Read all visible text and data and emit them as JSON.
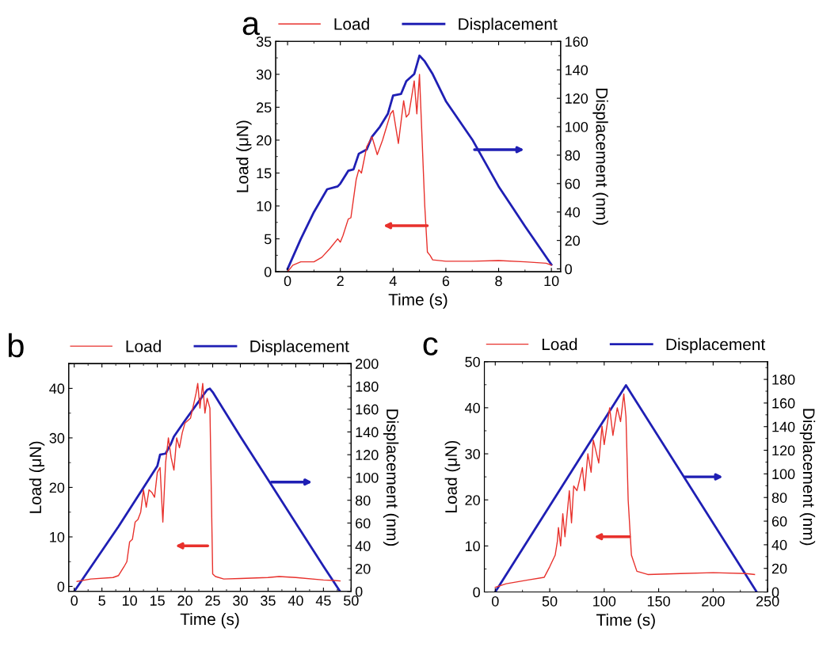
{
  "chart_data": [
    {
      "type": "line",
      "title": "a",
      "xlabel": "Time (s)",
      "ylabel": "Load (μN)",
      "y2label": "Displacement (nm)",
      "legend": "top",
      "xlim": [
        -0.45,
        10.35
      ],
      "xticks": [
        0,
        2,
        4,
        6,
        8,
        10
      ],
      "ylim": [
        0,
        35
      ],
      "yticks": [
        0,
        5,
        10,
        15,
        20,
        25,
        30,
        35
      ],
      "y2lim": [
        -2,
        160
      ],
      "y2ticks": [
        0,
        20,
        40,
        60,
        80,
        100,
        120,
        140,
        160
      ],
      "series": [
        {
          "name": "Load",
          "color": "#e8312c",
          "x": [
            0,
            0.2,
            0.5,
            1,
            1.3,
            1.6,
            1.9,
            2,
            2.1,
            2.3,
            2.4,
            2.6,
            2.7,
            2.8,
            3,
            3.2,
            3.4,
            3.6,
            3.9,
            4.0,
            4.2,
            4.4,
            4.5,
            4.6,
            4.8,
            4.9,
            5.0,
            5.05,
            5.2,
            5.3,
            5.4,
            5.5,
            6,
            7,
            8,
            9,
            9.8,
            10
          ],
          "values": [
            0,
            1,
            1.5,
            1.5,
            2.2,
            3.5,
            5,
            4.5,
            5.5,
            8,
            8.2,
            14,
            15.5,
            15,
            19,
            20.5,
            17.8,
            20,
            24,
            24.5,
            19.5,
            26,
            23.5,
            24,
            29,
            24,
            30,
            25,
            10,
            3,
            2.5,
            1.8,
            1.6,
            1.6,
            1.7,
            1.5,
            1.3,
            1.0
          ]
        },
        {
          "name": "Displacement",
          "color": "#1f1fb4",
          "axis": "y2",
          "x": [
            0,
            0.5,
            1,
            1.5,
            1.9,
            2,
            2.3,
            2.5,
            2.7,
            3,
            3.2,
            3.5,
            3.8,
            4,
            4.3,
            4.5,
            4.8,
            5,
            5.2,
            5.5,
            6,
            7,
            8,
            9,
            10
          ],
          "values": [
            0,
            21,
            40,
            56,
            58,
            60,
            69,
            70,
            81,
            84,
            93,
            100,
            109,
            122,
            123,
            132,
            137,
            150,
            146,
            137,
            118,
            91,
            58,
            30,
            3
          ]
        }
      ]
    },
    {
      "type": "line",
      "title": "b",
      "xlabel": "Time (s)",
      "ylabel": "Load (μN)",
      "y2label": "Displacement (nm)",
      "legend": "top",
      "xlim": [
        -1,
        50
      ],
      "xticks": [
        0,
        5,
        10,
        15,
        20,
        25,
        30,
        35,
        40,
        45,
        50
      ],
      "ylim": [
        -1,
        45
      ],
      "yticks": [
        0,
        10,
        20,
        30,
        40
      ],
      "y2lim": [
        0,
        200
      ],
      "y2ticks": [
        0,
        20,
        40,
        60,
        80,
        100,
        120,
        140,
        160,
        180,
        200
      ],
      "series": [
        {
          "name": "Load",
          "color": "#e8312c",
          "x": [
            0.5,
            3,
            7,
            8,
            9,
            9.5,
            10,
            10.5,
            11,
            11.5,
            12,
            12.5,
            13,
            13.5,
            14,
            14.5,
            15,
            15.5,
            16,
            16.5,
            17,
            17.5,
            18,
            18.5,
            19,
            19.5,
            20,
            21,
            22,
            22.3,
            22.7,
            23.2,
            23.6,
            24,
            24.5,
            25,
            25.5,
            27,
            30,
            35,
            37,
            40,
            45,
            47,
            48
          ],
          "values": [
            1,
            1.5,
            1.8,
            2.2,
            4,
            5,
            9,
            9.5,
            13,
            13.5,
            15,
            19.5,
            16,
            19.5,
            19,
            18,
            23,
            24,
            13,
            25,
            30,
            26,
            23.5,
            30,
            28,
            31,
            33,
            34,
            39,
            41,
            36,
            41,
            35,
            38,
            36,
            2.5,
            2,
            1.5,
            1.6,
            1.8,
            2.0,
            1.8,
            1.3,
            1.2,
            1.1
          ]
        },
        {
          "name": "Displacement",
          "color": "#1f1fb4",
          "axis": "y2",
          "x": [
            0,
            8,
            15,
            15.5,
            16.5,
            17.5,
            18,
            20,
            24,
            24.5,
            25,
            30,
            35,
            40,
            45,
            48
          ],
          "values": [
            0,
            57,
            110,
            120,
            121,
            130,
            136,
            150,
            177,
            178,
            175,
            136,
            98,
            60,
            22,
            0
          ]
        }
      ]
    },
    {
      "type": "line",
      "title": "c",
      "xlabel": "Time (s)",
      "ylabel": "Load (μN)",
      "y2label": "Displacement (nm)",
      "legend": "top",
      "xlim": [
        -10,
        250
      ],
      "xticks": [
        0,
        50,
        100,
        150,
        200,
        250
      ],
      "ylim": [
        0,
        50
      ],
      "yticks": [
        0,
        10,
        20,
        30,
        40,
        50
      ],
      "y2lim": [
        0,
        195
      ],
      "y2ticks": [
        0,
        20,
        40,
        60,
        80,
        100,
        120,
        140,
        160,
        180
      ],
      "series": [
        {
          "name": "Load",
          "color": "#e8312c",
          "x": [
            0,
            10,
            30,
            45,
            50,
            55,
            57,
            58,
            60,
            62,
            64,
            68,
            70,
            72,
            75,
            80,
            82,
            85,
            88,
            90,
            95,
            98,
            100,
            105,
            108,
            112,
            115,
            118,
            120,
            122,
            125,
            130,
            140,
            170,
            200,
            230,
            238
          ],
          "values": [
            1,
            1.8,
            2.6,
            3.2,
            5.5,
            8,
            11,
            14,
            10,
            17,
            12,
            22,
            15,
            23,
            22,
            27,
            22,
            30,
            26,
            33,
            28,
            36,
            32,
            40,
            34,
            40,
            37,
            43,
            38,
            20,
            8,
            4.5,
            3.8,
            4.0,
            4.2,
            4.0,
            3.8
          ]
        },
        {
          "name": "Displacement",
          "color": "#1f1fb4",
          "axis": "y2",
          "x": [
            0,
            120,
            240
          ],
          "values": [
            0,
            175,
            0
          ]
        }
      ]
    }
  ]
}
